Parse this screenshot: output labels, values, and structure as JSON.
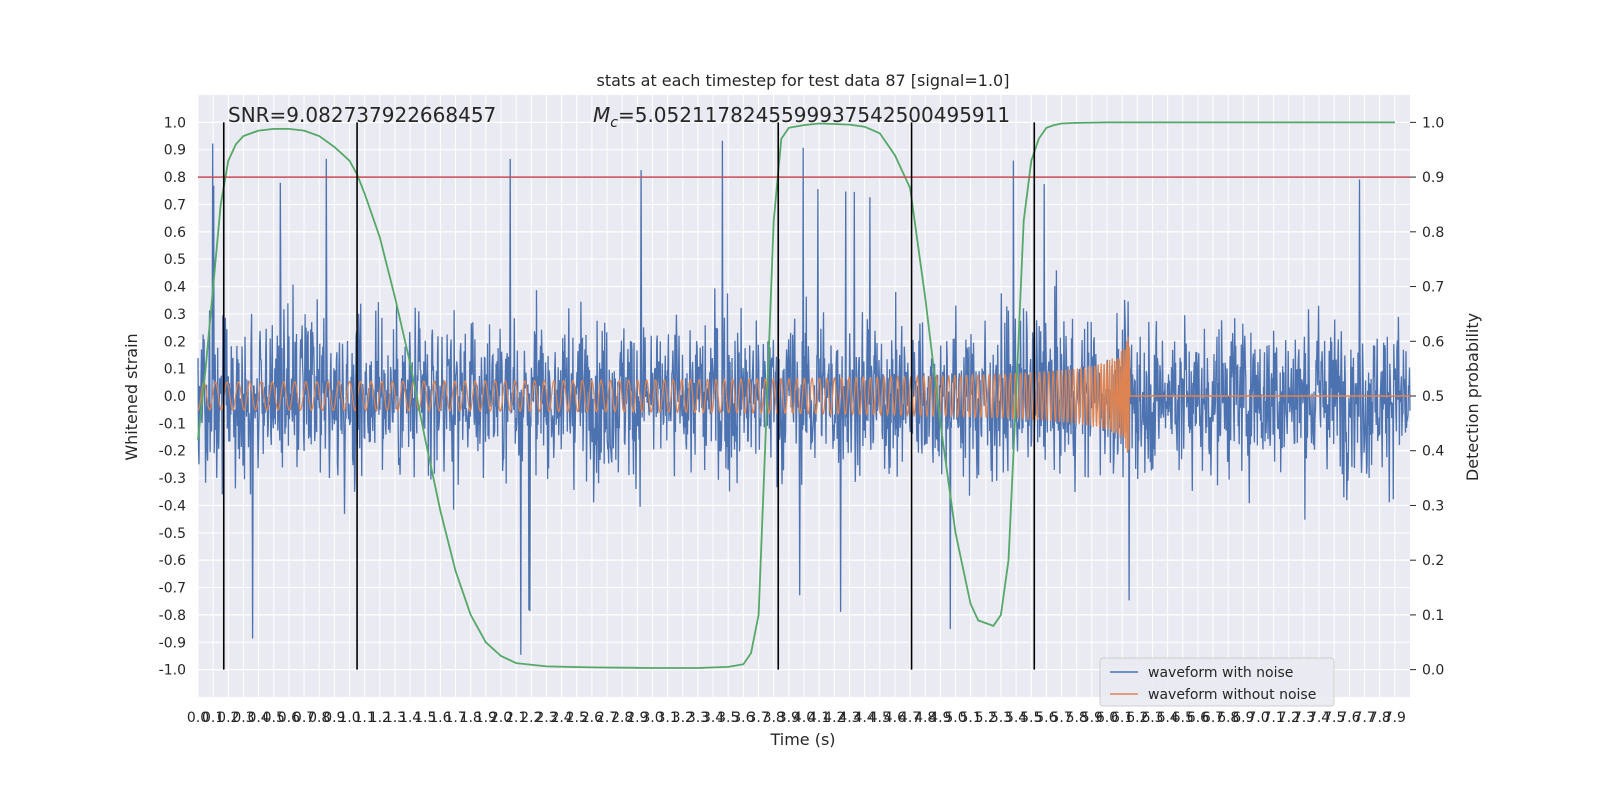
{
  "chart_data": {
    "type": "line",
    "title": "stats at each timestep for test data 87 [signal=1.0]",
    "xlabel": "Time (s)",
    "ylabel": "Whitened strain",
    "ylabel_right": "Detection probability",
    "xlim": [
      0,
      8.0
    ],
    "ylim": [
      -1.1,
      1.1
    ],
    "ylim_right": [
      -0.05,
      1.05
    ],
    "grid": true,
    "legend": "bottom-right",
    "annotations": [
      {
        "text": "SNR=9.082737922668457"
      },
      {
        "text": "=5.052117824559993754250049591​1",
        "prefix_math": "M",
        "subscript": "c"
      }
    ],
    "annotations_raw": {
      "snr": "SNR=9.082737922668457",
      "mc_value": "=5.0521178245599937542500495911",
      "mc_symbol": "M",
      "mc_sub": "c"
    },
    "threshold": {
      "value": 0.9,
      "axis": "right",
      "color": "#c44e52"
    },
    "event_lines_x": [
      0.17,
      1.05,
      3.83,
      4.71,
      5.52
    ],
    "x_ticks_step": 0.1,
    "y_ticks": [
      -1.0,
      -0.9,
      -0.8,
      -0.7,
      -0.6,
      -0.5,
      -0.4,
      -0.3,
      -0.2,
      -0.1,
      0.0,
      0.1,
      0.2,
      0.3,
      0.4,
      0.5,
      0.6,
      0.7,
      0.8,
      0.9,
      1.0
    ],
    "y_right_ticks": [
      0.0,
      0.1,
      0.2,
      0.3,
      0.4,
      0.5,
      0.6,
      0.7,
      0.8,
      0.9,
      1.0
    ],
    "series": [
      {
        "name": "waveform with noise",
        "color": "#4c72b0",
        "kind": "noise",
        "amplitude_typical": 0.35,
        "amplitude_peak": 0.95
      },
      {
        "name": "waveform without noise",
        "color": "#dd8452",
        "kind": "chirp",
        "t_end": 6.15,
        "amp_start": 0.02,
        "amp_end": 0.25
      },
      {
        "name": "",
        "color": "#55a868",
        "kind": "probability",
        "x": [
          0.0,
          0.05,
          0.1,
          0.15,
          0.2,
          0.25,
          0.3,
          0.4,
          0.5,
          0.6,
          0.7,
          0.8,
          0.9,
          1.0,
          1.05,
          1.1,
          1.2,
          1.3,
          1.4,
          1.5,
          1.6,
          1.7,
          1.8,
          1.9,
          2.0,
          2.1,
          2.3,
          2.6,
          3.0,
          3.3,
          3.5,
          3.6,
          3.65,
          3.7,
          3.75,
          3.8,
          3.85,
          3.9,
          4.0,
          4.1,
          4.2,
          4.3,
          4.4,
          4.5,
          4.6,
          4.65,
          4.7,
          4.8,
          4.9,
          5.0,
          5.1,
          5.15,
          5.2,
          5.25,
          5.3,
          5.35,
          5.4,
          5.45,
          5.5,
          5.55,
          5.6,
          5.65,
          5.7,
          5.8,
          6.0,
          7.0,
          7.9
        ],
        "y": [
          0.42,
          0.55,
          0.7,
          0.85,
          0.93,
          0.96,
          0.975,
          0.985,
          0.988,
          0.988,
          0.985,
          0.975,
          0.955,
          0.93,
          0.905,
          0.87,
          0.79,
          0.68,
          0.56,
          0.42,
          0.29,
          0.18,
          0.1,
          0.05,
          0.025,
          0.012,
          0.006,
          0.004,
          0.003,
          0.003,
          0.005,
          0.01,
          0.03,
          0.1,
          0.45,
          0.82,
          0.97,
          0.99,
          0.995,
          0.998,
          0.997,
          0.996,
          0.992,
          0.98,
          0.94,
          0.91,
          0.88,
          0.68,
          0.45,
          0.25,
          0.12,
          0.09,
          0.085,
          0.08,
          0.1,
          0.2,
          0.5,
          0.82,
          0.93,
          0.97,
          0.99,
          0.995,
          0.998,
          0.999,
          1.0,
          1.0,
          1.0
        ]
      }
    ]
  }
}
